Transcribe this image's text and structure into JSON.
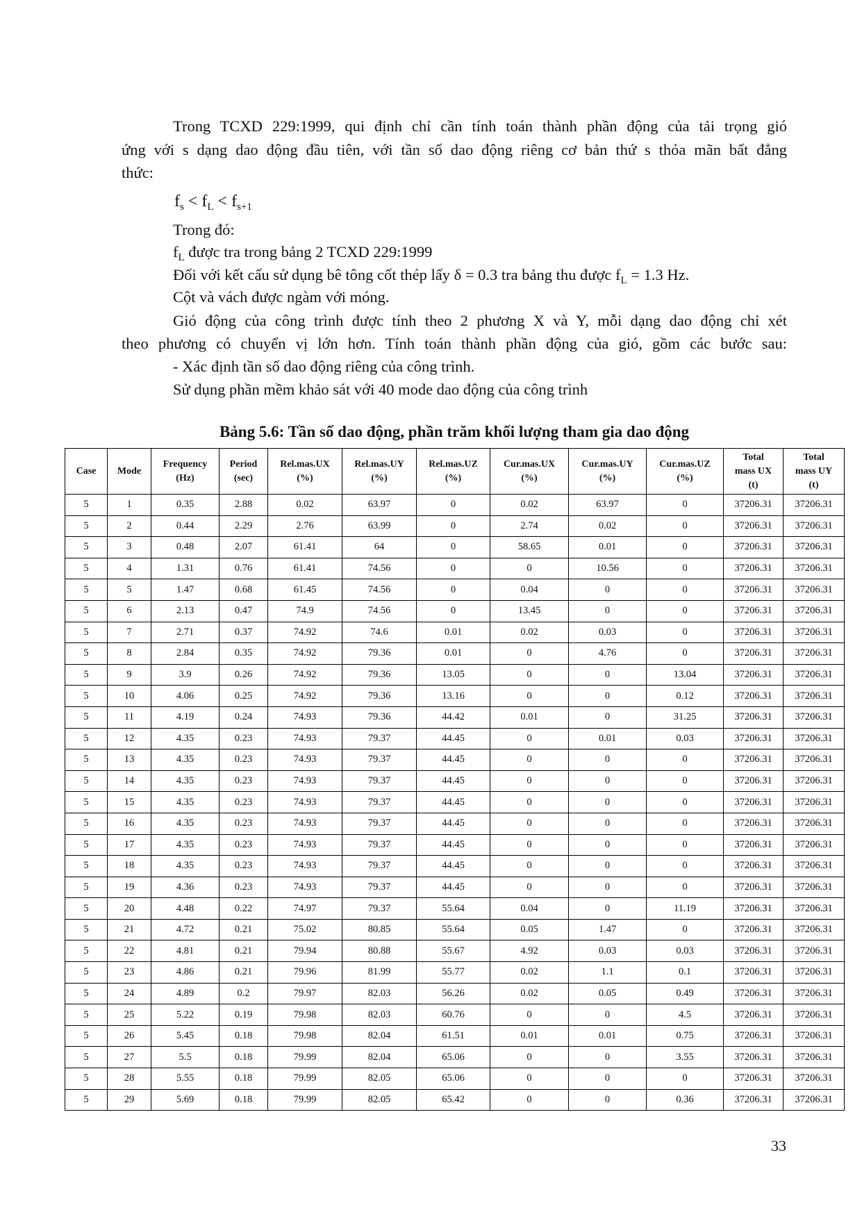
{
  "text": {
    "p1_l1": "Trong TCXD 229:1999, qui định chỉ cần tính toán thành phần động của tải trọng gió",
    "p1_l2": "ứng với s dạng dao động đầu tiên, với tần số dao động riêng cơ bản thứ s thỏa mãn bất đẳng",
    "p1_l3": "thức:",
    "formula": {
      "f1": "f",
      "s1": "s",
      "lt1": " < f",
      "s2": "L",
      "lt2": " < f",
      "s3": "s+1"
    },
    "where": "Trong đó:",
    "fl_line": {
      "f": "f",
      "sub": "L",
      "rest": " được tra trong bảng 2 TCXD 229:1999"
    },
    "delta_line": {
      "pre": "Đối với kết cấu sử dụng bê tông cốt thép lấy δ = 0.3 tra bảng thu được f",
      "sub": "L",
      "post": " = 1.3 Hz."
    },
    "fix_line": "Cột và vách được ngàm với móng.",
    "p2_l1": "Gió động của công trình được tính theo 2 phương X và Y, mỗi dạng dao động chỉ xét",
    "p2_l2": "theo phương có chuyển vị lớn hơn. Tính toán thành phần động của gió, gồm các bước sau:",
    "step1": "- Xác định tần số dao động riêng của công trình.",
    "software": "Sử dụng phần mềm  khảo sát với 40 mode dao động của công trình"
  },
  "table": {
    "caption": "Bảng 5.6: Tần số dao động, phần trăm khối lượng tham gia dao động",
    "headers": [
      [
        "Case"
      ],
      [
        "Mode"
      ],
      [
        "Frequency",
        "(Hz)"
      ],
      [
        "Period",
        "(sec)"
      ],
      [
        "Rel.mas.UX",
        "(%)"
      ],
      [
        "Rel.mas.UY",
        "(%)"
      ],
      [
        "Rel.mas.UZ",
        "(%)"
      ],
      [
        "Cur.mas.UX",
        "(%)"
      ],
      [
        "Cur.mas.UY",
        "(%)"
      ],
      [
        "Cur.mas.UZ",
        "(%)"
      ],
      [
        "Total",
        "mass UX",
        "(t)"
      ],
      [
        "Total",
        "mass UY",
        "(t)"
      ]
    ],
    "rows": [
      [
        "5",
        "1",
        "0.35",
        "2.88",
        "0.02",
        "63.97",
        "0",
        "0.02",
        "63.97",
        "0",
        "37206.31",
        "37206.31"
      ],
      [
        "5",
        "2",
        "0.44",
        "2.29",
        "2.76",
        "63.99",
        "0",
        "2.74",
        "0.02",
        "0",
        "37206.31",
        "37206.31"
      ],
      [
        "5",
        "3",
        "0.48",
        "2.07",
        "61.41",
        "64",
        "0",
        "58.65",
        "0.01",
        "0",
        "37206.31",
        "37206.31"
      ],
      [
        "5",
        "4",
        "1.31",
        "0.76",
        "61.41",
        "74.56",
        "0",
        "0",
        "10.56",
        "0",
        "37206.31",
        "37206.31"
      ],
      [
        "5",
        "5",
        "1.47",
        "0.68",
        "61.45",
        "74.56",
        "0",
        "0.04",
        "0",
        "0",
        "37206.31",
        "37206.31"
      ],
      [
        "5",
        "6",
        "2.13",
        "0.47",
        "74.9",
        "74.56",
        "0",
        "13.45",
        "0",
        "0",
        "37206.31",
        "37206.31"
      ],
      [
        "5",
        "7",
        "2.71",
        "0.37",
        "74.92",
        "74.6",
        "0.01",
        "0.02",
        "0.03",
        "0",
        "37206.31",
        "37206.31"
      ],
      [
        "5",
        "8",
        "2.84",
        "0.35",
        "74.92",
        "79.36",
        "0.01",
        "0",
        "4.76",
        "0",
        "37206.31",
        "37206.31"
      ],
      [
        "5",
        "9",
        "3.9",
        "0.26",
        "74.92",
        "79.36",
        "13.05",
        "0",
        "0",
        "13.04",
        "37206.31",
        "37206.31"
      ],
      [
        "5",
        "10",
        "4.06",
        "0.25",
        "74.92",
        "79.36",
        "13.16",
        "0",
        "0",
        "0.12",
        "37206.31",
        "37206.31"
      ],
      [
        "5",
        "11",
        "4.19",
        "0.24",
        "74.93",
        "79.36",
        "44.42",
        "0.01",
        "0",
        "31.25",
        "37206.31",
        "37206.31"
      ],
      [
        "5",
        "12",
        "4.35",
        "0.23",
        "74.93",
        "79.37",
        "44.45",
        "0",
        "0.01",
        "0.03",
        "37206.31",
        "37206.31"
      ],
      [
        "5",
        "13",
        "4.35",
        "0.23",
        "74.93",
        "79.37",
        "44.45",
        "0",
        "0",
        "0",
        "37206.31",
        "37206.31"
      ],
      [
        "5",
        "14",
        "4.35",
        "0.23",
        "74.93",
        "79.37",
        "44.45",
        "0",
        "0",
        "0",
        "37206.31",
        "37206.31"
      ],
      [
        "5",
        "15",
        "4.35",
        "0.23",
        "74.93",
        "79.37",
        "44.45",
        "0",
        "0",
        "0",
        "37206.31",
        "37206.31"
      ],
      [
        "5",
        "16",
        "4.35",
        "0.23",
        "74.93",
        "79.37",
        "44.45",
        "0",
        "0",
        "0",
        "37206.31",
        "37206.31"
      ],
      [
        "5",
        "17",
        "4.35",
        "0.23",
        "74.93",
        "79.37",
        "44.45",
        "0",
        "0",
        "0",
        "37206.31",
        "37206.31"
      ],
      [
        "5",
        "18",
        "4.35",
        "0.23",
        "74.93",
        "79.37",
        "44.45",
        "0",
        "0",
        "0",
        "37206.31",
        "37206.31"
      ],
      [
        "5",
        "19",
        "4.36",
        "0.23",
        "74.93",
        "79.37",
        "44.45",
        "0",
        "0",
        "0",
        "37206.31",
        "37206.31"
      ],
      [
        "5",
        "20",
        "4.48",
        "0.22",
        "74.97",
        "79.37",
        "55.64",
        "0.04",
        "0",
        "11.19",
        "37206.31",
        "37206.31"
      ],
      [
        "5",
        "21",
        "4.72",
        "0.21",
        "75.02",
        "80.85",
        "55.64",
        "0.05",
        "1.47",
        "0",
        "37206.31",
        "37206.31"
      ],
      [
        "5",
        "22",
        "4.81",
        "0.21",
        "79.94",
        "80.88",
        "55.67",
        "4.92",
        "0.03",
        "0.03",
        "37206.31",
        "37206.31"
      ],
      [
        "5",
        "23",
        "4.86",
        "0.21",
        "79.96",
        "81.99",
        "55.77",
        "0.02",
        "1.1",
        "0.1",
        "37206.31",
        "37206.31"
      ],
      [
        "5",
        "24",
        "4.89",
        "0.2",
        "79.97",
        "82.03",
        "56.26",
        "0.02",
        "0.05",
        "0.49",
        "37206.31",
        "37206.31"
      ],
      [
        "5",
        "25",
        "5.22",
        "0.19",
        "79.98",
        "82.03",
        "60.76",
        "0",
        "0",
        "4.5",
        "37206.31",
        "37206.31"
      ],
      [
        "5",
        "26",
        "5.45",
        "0.18",
        "79.98",
        "82.04",
        "61.51",
        "0.01",
        "0.01",
        "0.75",
        "37206.31",
        "37206.31"
      ],
      [
        "5",
        "27",
        "5.5",
        "0.18",
        "79.99",
        "82.04",
        "65.06",
        "0",
        "0",
        "3.55",
        "37206.31",
        "37206.31"
      ],
      [
        "5",
        "28",
        "5.55",
        "0.18",
        "79.99",
        "82.05",
        "65.06",
        "0",
        "0",
        "0",
        "37206.31",
        "37206.31"
      ],
      [
        "5",
        "29",
        "5.69",
        "0.18",
        "79.99",
        "82.05",
        "65.42",
        "0",
        "0",
        "0.36",
        "37206.31",
        "37206.31"
      ]
    ]
  },
  "page_number": "33"
}
